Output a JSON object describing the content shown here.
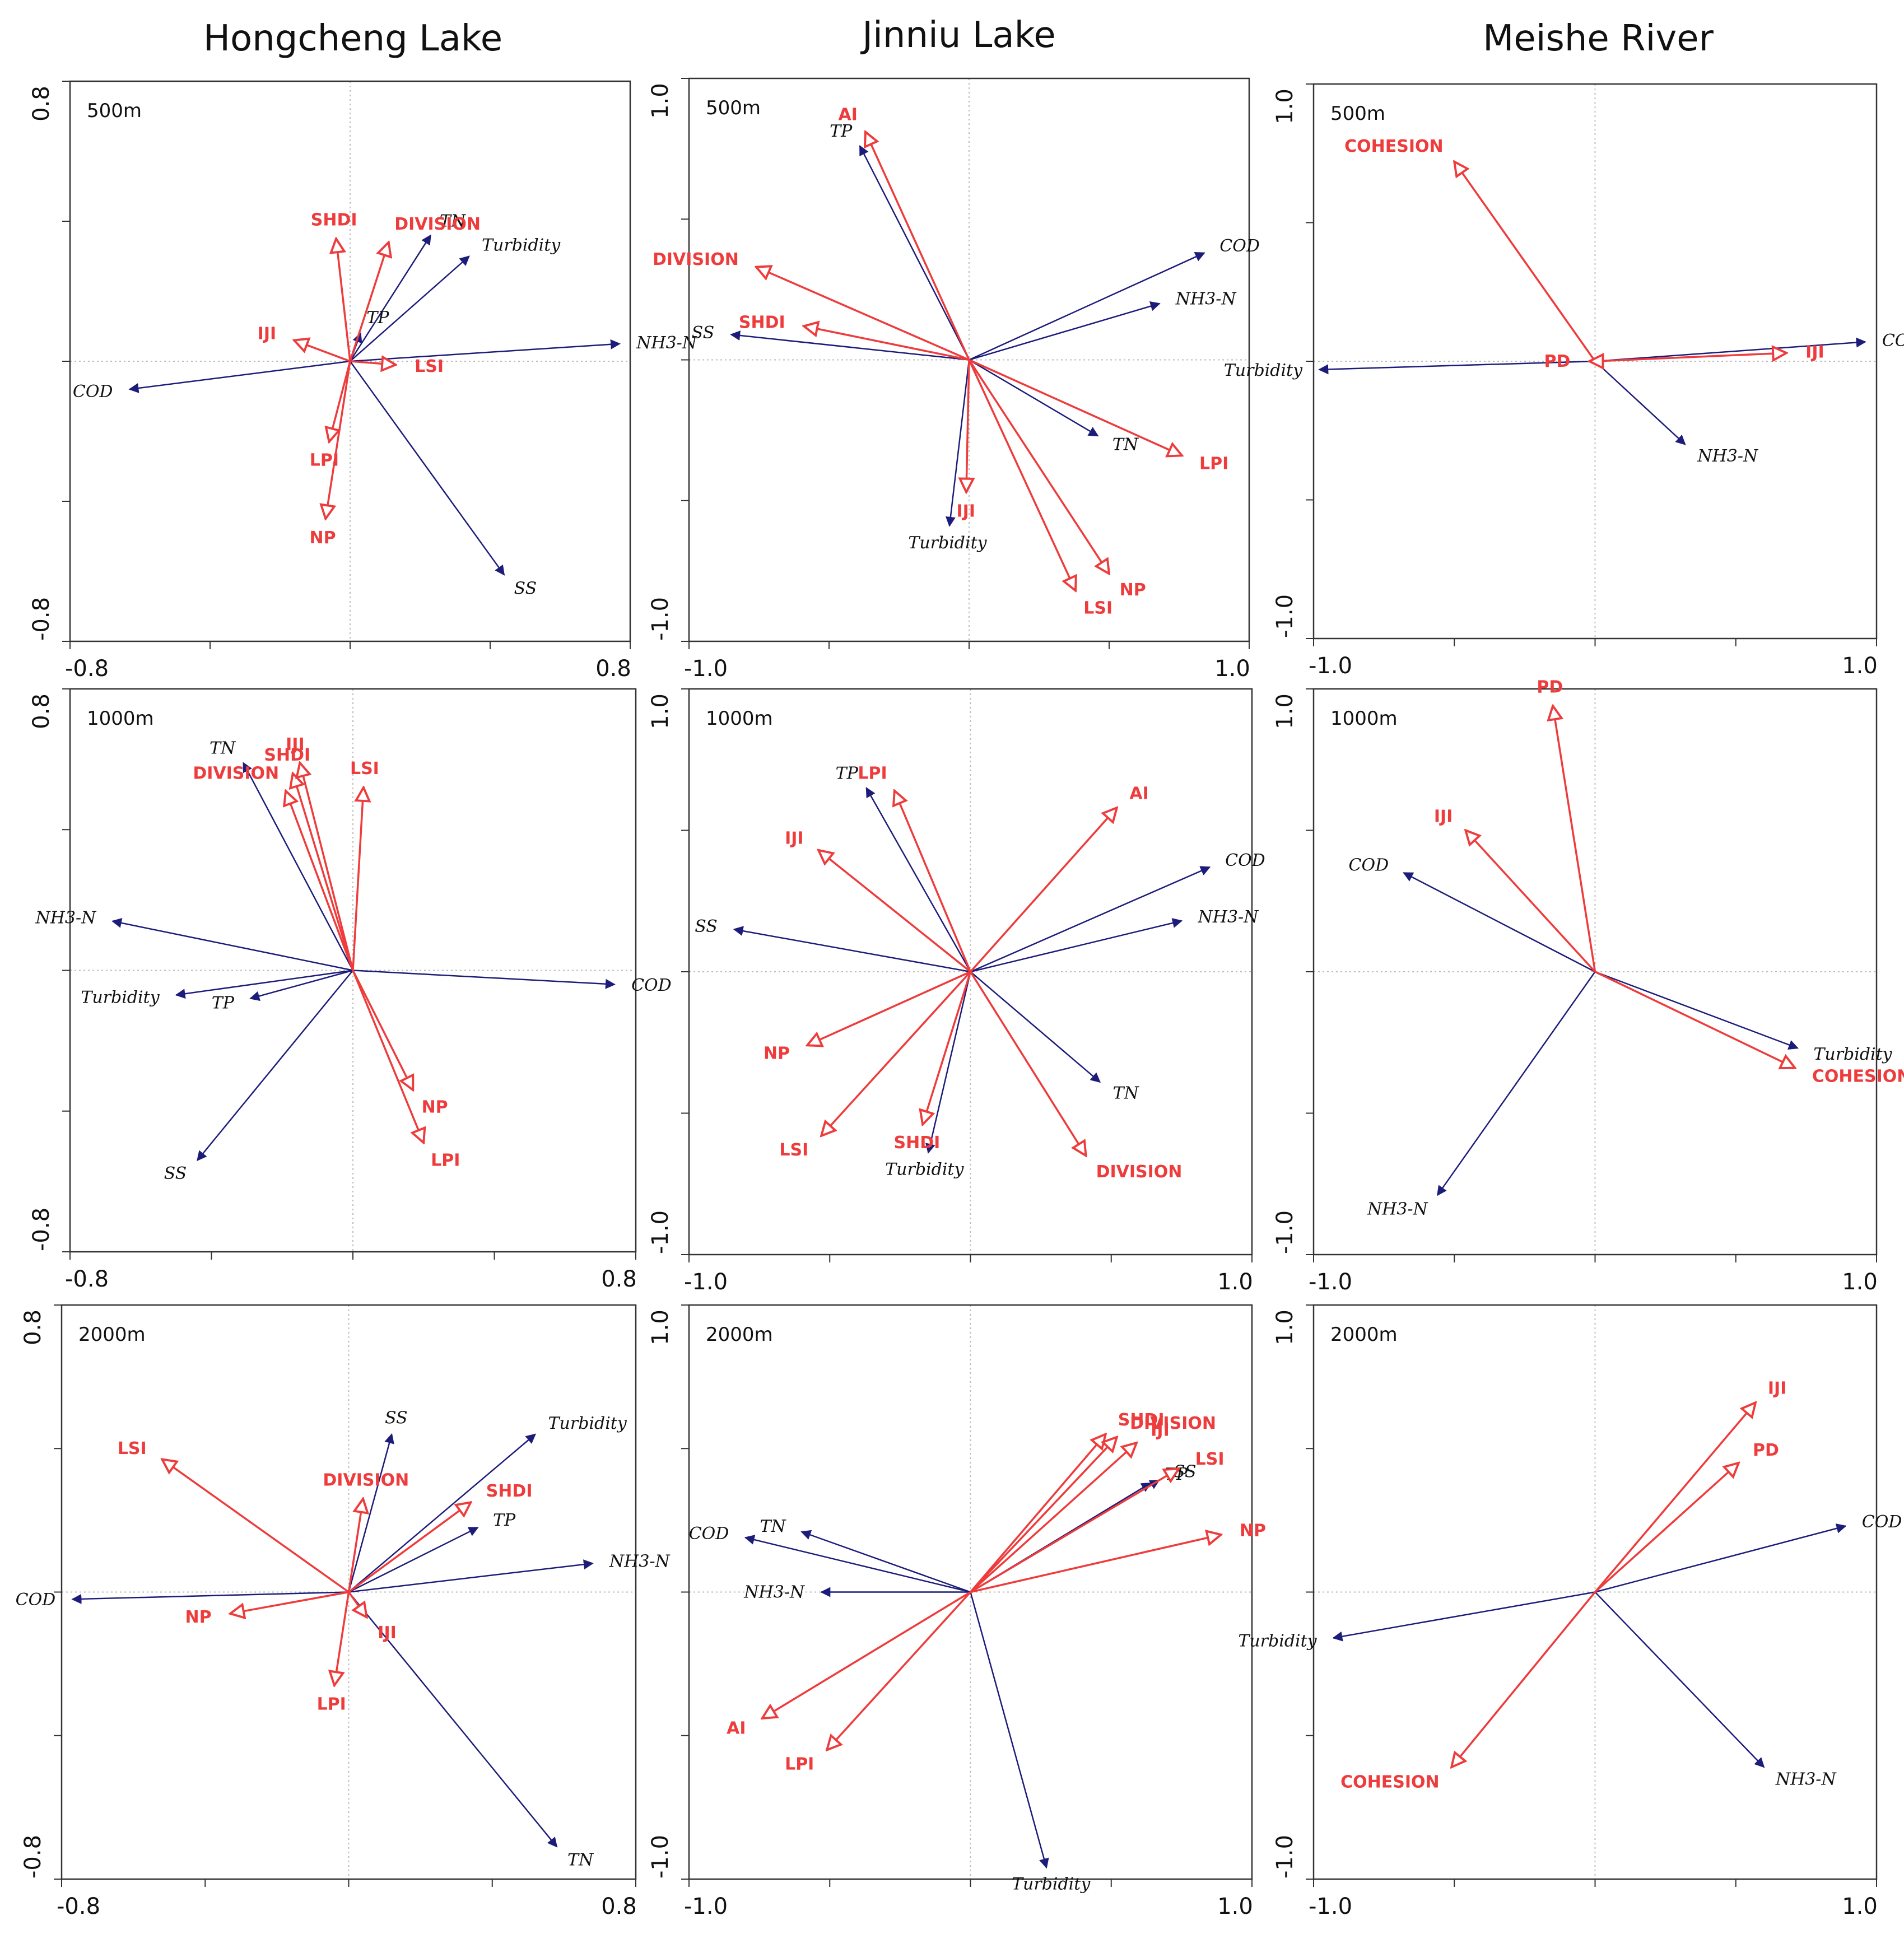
{
  "colors": {
    "env": "#1c1c7a",
    "landscape": "#ee3b3b",
    "axis": "#333333",
    "zero": "#bbbbbb"
  },
  "chart_data": [
    {
      "type": "scatter",
      "subtype": "rda-biplot",
      "title": "Hongcheng Lake",
      "buffer": "500m",
      "xlim": [
        -0.8,
        0.8
      ],
      "ylim": [
        -0.8,
        0.8
      ],
      "tick_labels": {
        "xmin": "-0.8",
        "xmax": "0.8",
        "ymin": "-0.8",
        "ymax": "0.8"
      },
      "env": [
        {
          "name": "TN",
          "x": 0.23,
          "y": 0.36
        },
        {
          "name": "Turbidity",
          "x": 0.34,
          "y": 0.3
        },
        {
          "name": "TP",
          "x": 0.03,
          "y": 0.08
        },
        {
          "name": "NH3-N",
          "x": 0.77,
          "y": 0.05
        },
        {
          "name": "COD",
          "x": -0.63,
          "y": -0.08
        },
        {
          "name": "SS",
          "x": 0.44,
          "y": -0.61
        }
      ],
      "landscape": [
        {
          "name": "SHDI",
          "x": -0.04,
          "y": 0.35
        },
        {
          "name": "DIVISION",
          "x": 0.11,
          "y": 0.34
        },
        {
          "name": "IJI",
          "x": -0.16,
          "y": 0.06
        },
        {
          "name": "LSI",
          "x": 0.13,
          "y": -0.01
        },
        {
          "name": "LPI",
          "x": -0.06,
          "y": -0.23
        },
        {
          "name": "NP",
          "x": -0.07,
          "y": -0.45
        }
      ]
    },
    {
      "type": "scatter",
      "subtype": "rda-biplot",
      "title": "Jinniu Lake",
      "buffer": "500m",
      "xlim": [
        -1.0,
        1.0
      ],
      "ylim": [
        -1.0,
        1.0
      ],
      "tick_labels": {
        "xmin": "-1.0",
        "xmax": "1.0",
        "ymin": "-1.0",
        "ymax": "1.0"
      },
      "env": [
        {
          "name": "TP",
          "x": -0.39,
          "y": 0.76
        },
        {
          "name": "COD",
          "x": 0.84,
          "y": 0.38
        },
        {
          "name": "NH3-N",
          "x": 0.68,
          "y": 0.2
        },
        {
          "name": "SS",
          "x": -0.85,
          "y": 0.09
        },
        {
          "name": "TN",
          "x": 0.46,
          "y": -0.27
        },
        {
          "name": "Turbidity",
          "x": -0.07,
          "y": -0.59
        }
      ],
      "landscape": [
        {
          "name": "AI",
          "x": -0.37,
          "y": 0.81
        },
        {
          "name": "DIVISION",
          "x": -0.76,
          "y": 0.33
        },
        {
          "name": "SHDI",
          "x": -0.59,
          "y": 0.12
        },
        {
          "name": "LPI",
          "x": 0.76,
          "y": -0.34
        },
        {
          "name": "IJI",
          "x": -0.01,
          "y": -0.47
        },
        {
          "name": "NP",
          "x": 0.5,
          "y": -0.76
        },
        {
          "name": "LSI",
          "x": 0.38,
          "y": -0.82
        }
      ]
    },
    {
      "type": "scatter",
      "subtype": "rda-biplot",
      "title": "Meishe River",
      "buffer": "500m",
      "xlim": [
        -1.0,
        1.0
      ],
      "ylim": [
        -1.0,
        1.0
      ],
      "tick_labels": {
        "xmin": "-1.0",
        "xmax": "1.0",
        "ymin": "-1.0",
        "ymax": "1.0"
      },
      "env": [
        {
          "name": "COD",
          "x": 0.96,
          "y": 0.07
        },
        {
          "name": "Turbidity",
          "x": -0.98,
          "y": -0.03
        },
        {
          "name": "NH3-N",
          "x": 0.32,
          "y": -0.3
        }
      ],
      "landscape": [
        {
          "name": "COHESION",
          "x": -0.5,
          "y": 0.72
        },
        {
          "name": "IJI",
          "x": 0.68,
          "y": 0.03
        },
        {
          "name": "PD",
          "x": -0.02,
          "y": 0.0
        }
      ]
    },
    {
      "type": "scatter",
      "subtype": "rda-biplot",
      "title": "Hongcheng Lake",
      "buffer": "1000m",
      "xlim": [
        -0.8,
        0.8
      ],
      "ylim": [
        -0.8,
        0.8
      ],
      "tick_labels": {
        "xmin": "-0.8",
        "xmax": "0.8",
        "ymin": "-0.8",
        "ymax": "0.8"
      },
      "env": [
        {
          "name": "TN",
          "x": -0.31,
          "y": 0.59
        },
        {
          "name": "NH3-N",
          "x": -0.68,
          "y": 0.14
        },
        {
          "name": "Turbidity",
          "x": -0.5,
          "y": -0.07
        },
        {
          "name": "TP",
          "x": -0.29,
          "y": -0.08
        },
        {
          "name": "COD",
          "x": 0.74,
          "y": -0.04
        },
        {
          "name": "SS",
          "x": -0.44,
          "y": -0.54
        }
      ],
      "landscape": [
        {
          "name": "SHDI",
          "x": -0.17,
          "y": 0.56
        },
        {
          "name": "IJI",
          "x": -0.15,
          "y": 0.59
        },
        {
          "name": "DIVISION",
          "x": -0.19,
          "y": 0.51
        },
        {
          "name": "LSI",
          "x": 0.03,
          "y": 0.52
        },
        {
          "name": "NP",
          "x": 0.17,
          "y": -0.34
        },
        {
          "name": "LPI",
          "x": 0.2,
          "y": -0.49
        }
      ]
    },
    {
      "type": "scatter",
      "subtype": "rda-biplot",
      "title": "Jinniu Lake",
      "buffer": "1000m",
      "xlim": [
        -1.0,
        1.0
      ],
      "ylim": [
        -1.0,
        1.0
      ],
      "tick_labels": {
        "xmin": "-1.0",
        "xmax": "1.0",
        "ymin": "-1.0",
        "ymax": "1.0"
      },
      "env": [
        {
          "name": "TP",
          "x": -0.37,
          "y": 0.65
        },
        {
          "name": "COD",
          "x": 0.85,
          "y": 0.37
        },
        {
          "name": "NH3-N",
          "x": 0.75,
          "y": 0.18
        },
        {
          "name": "SS",
          "x": -0.84,
          "y": 0.15
        },
        {
          "name": "TN",
          "x": 0.46,
          "y": -0.39
        },
        {
          "name": "Turbidity",
          "x": -0.15,
          "y": -0.64
        }
      ],
      "landscape": [
        {
          "name": "LPI",
          "x": -0.27,
          "y": 0.64
        },
        {
          "name": "AI",
          "x": 0.52,
          "y": 0.58
        },
        {
          "name": "IJI",
          "x": -0.54,
          "y": 0.43
        },
        {
          "name": "NP",
          "x": -0.58,
          "y": -0.26
        },
        {
          "name": "LSI",
          "x": -0.53,
          "y": -0.58
        },
        {
          "name": "SHDI",
          "x": -0.17,
          "y": -0.54
        },
        {
          "name": "DIVISION",
          "x": 0.41,
          "y": -0.65
        }
      ]
    },
    {
      "type": "scatter",
      "subtype": "rda-biplot",
      "title": "Meishe River",
      "buffer": "1000m",
      "xlim": [
        -1.0,
        1.0
      ],
      "ylim": [
        -1.0,
        1.0
      ],
      "tick_labels": {
        "xmin": "-1.0",
        "xmax": "1.0",
        "ymin": "-1.0",
        "ymax": "1.0"
      },
      "env": [
        {
          "name": "COD",
          "x": -0.68,
          "y": 0.35
        },
        {
          "name": "Turbidity",
          "x": 0.72,
          "y": -0.27
        },
        {
          "name": "NH3-N",
          "x": -0.56,
          "y": -0.79
        }
      ],
      "landscape": [
        {
          "name": "PD",
          "x": -0.15,
          "y": 0.94
        },
        {
          "name": "IJI",
          "x": -0.46,
          "y": 0.5
        },
        {
          "name": "COHESION",
          "x": 0.71,
          "y": -0.34
        }
      ]
    },
    {
      "type": "scatter",
      "subtype": "rda-biplot",
      "title": "Hongcheng Lake",
      "buffer": "2000m",
      "xlim": [
        -0.8,
        0.8
      ],
      "ylim": [
        -0.8,
        0.8
      ],
      "tick_labels": {
        "xmin": "-0.8",
        "xmax": "0.8",
        "ymin": "-0.8",
        "ymax": "0.8"
      },
      "env": [
        {
          "name": "SS",
          "x": 0.12,
          "y": 0.44
        },
        {
          "name": "Turbidity",
          "x": 0.52,
          "y": 0.44
        },
        {
          "name": "TP",
          "x": 0.36,
          "y": 0.18
        },
        {
          "name": "NH3-N",
          "x": 0.68,
          "y": 0.08
        },
        {
          "name": "COD",
          "x": -0.77,
          "y": -0.02
        },
        {
          "name": "TN",
          "x": 0.58,
          "y": -0.71
        }
      ],
      "landscape": [
        {
          "name": "LSI",
          "x": -0.52,
          "y": 0.37
        },
        {
          "name": "DIVISION",
          "x": 0.04,
          "y": 0.26
        },
        {
          "name": "SHDI",
          "x": 0.34,
          "y": 0.25
        },
        {
          "name": "NP",
          "x": -0.33,
          "y": -0.06
        },
        {
          "name": "IJI",
          "x": 0.05,
          "y": -0.07
        },
        {
          "name": "LPI",
          "x": -0.04,
          "y": -0.26
        }
      ]
    },
    {
      "type": "scatter",
      "subtype": "rda-biplot",
      "title": "Jinniu Lake",
      "buffer": "2000m",
      "xlim": [
        -1.0,
        1.0
      ],
      "ylim": [
        -1.0,
        1.0
      ],
      "tick_labels": {
        "xmin": "-1.0",
        "xmax": "1.0",
        "ymin": "-1.0",
        "ymax": "1.0"
      },
      "env": [
        {
          "name": "TN",
          "x": -0.6,
          "y": 0.21
        },
        {
          "name": "COD",
          "x": -0.8,
          "y": 0.19
        },
        {
          "name": "NH3-N",
          "x": -0.53,
          "y": 0.0
        },
        {
          "name": "TP",
          "x": 0.64,
          "y": 0.38
        },
        {
          "name": "SS",
          "x": 0.67,
          "y": 0.39
        },
        {
          "name": "Turbidity",
          "x": 0.27,
          "y": -0.96
        }
      ],
      "landscape": [
        {
          "name": "SHDI",
          "x": 0.48,
          "y": 0.55
        },
        {
          "name": "DIVISION",
          "x": 0.52,
          "y": 0.54
        },
        {
          "name": "IJI",
          "x": 0.59,
          "y": 0.52
        },
        {
          "name": "LSI",
          "x": 0.74,
          "y": 0.43
        },
        {
          "name": "NP",
          "x": 0.89,
          "y": 0.2
        },
        {
          "name": "AI",
          "x": -0.74,
          "y": -0.44
        },
        {
          "name": "LPI",
          "x": -0.51,
          "y": -0.55
        }
      ]
    },
    {
      "type": "scatter",
      "subtype": "rda-biplot",
      "title": "Meishe River",
      "buffer": "2000m",
      "xlim": [
        -1.0,
        1.0
      ],
      "ylim": [
        -1.0,
        1.0
      ],
      "tick_labels": {
        "xmin": "-1.0",
        "xmax": "1.0",
        "ymin": "-1.0",
        "ymax": "1.0"
      },
      "env": [
        {
          "name": "COD",
          "x": 0.89,
          "y": 0.23
        },
        {
          "name": "Turbidity",
          "x": -0.93,
          "y": -0.16
        },
        {
          "name": "NH3-N",
          "x": 0.6,
          "y": -0.61
        }
      ],
      "landscape": [
        {
          "name": "IJI",
          "x": 0.57,
          "y": 0.66
        },
        {
          "name": "PD",
          "x": 0.51,
          "y": 0.45
        },
        {
          "name": "COHESION",
          "x": -0.51,
          "y": -0.61
        }
      ]
    }
  ]
}
